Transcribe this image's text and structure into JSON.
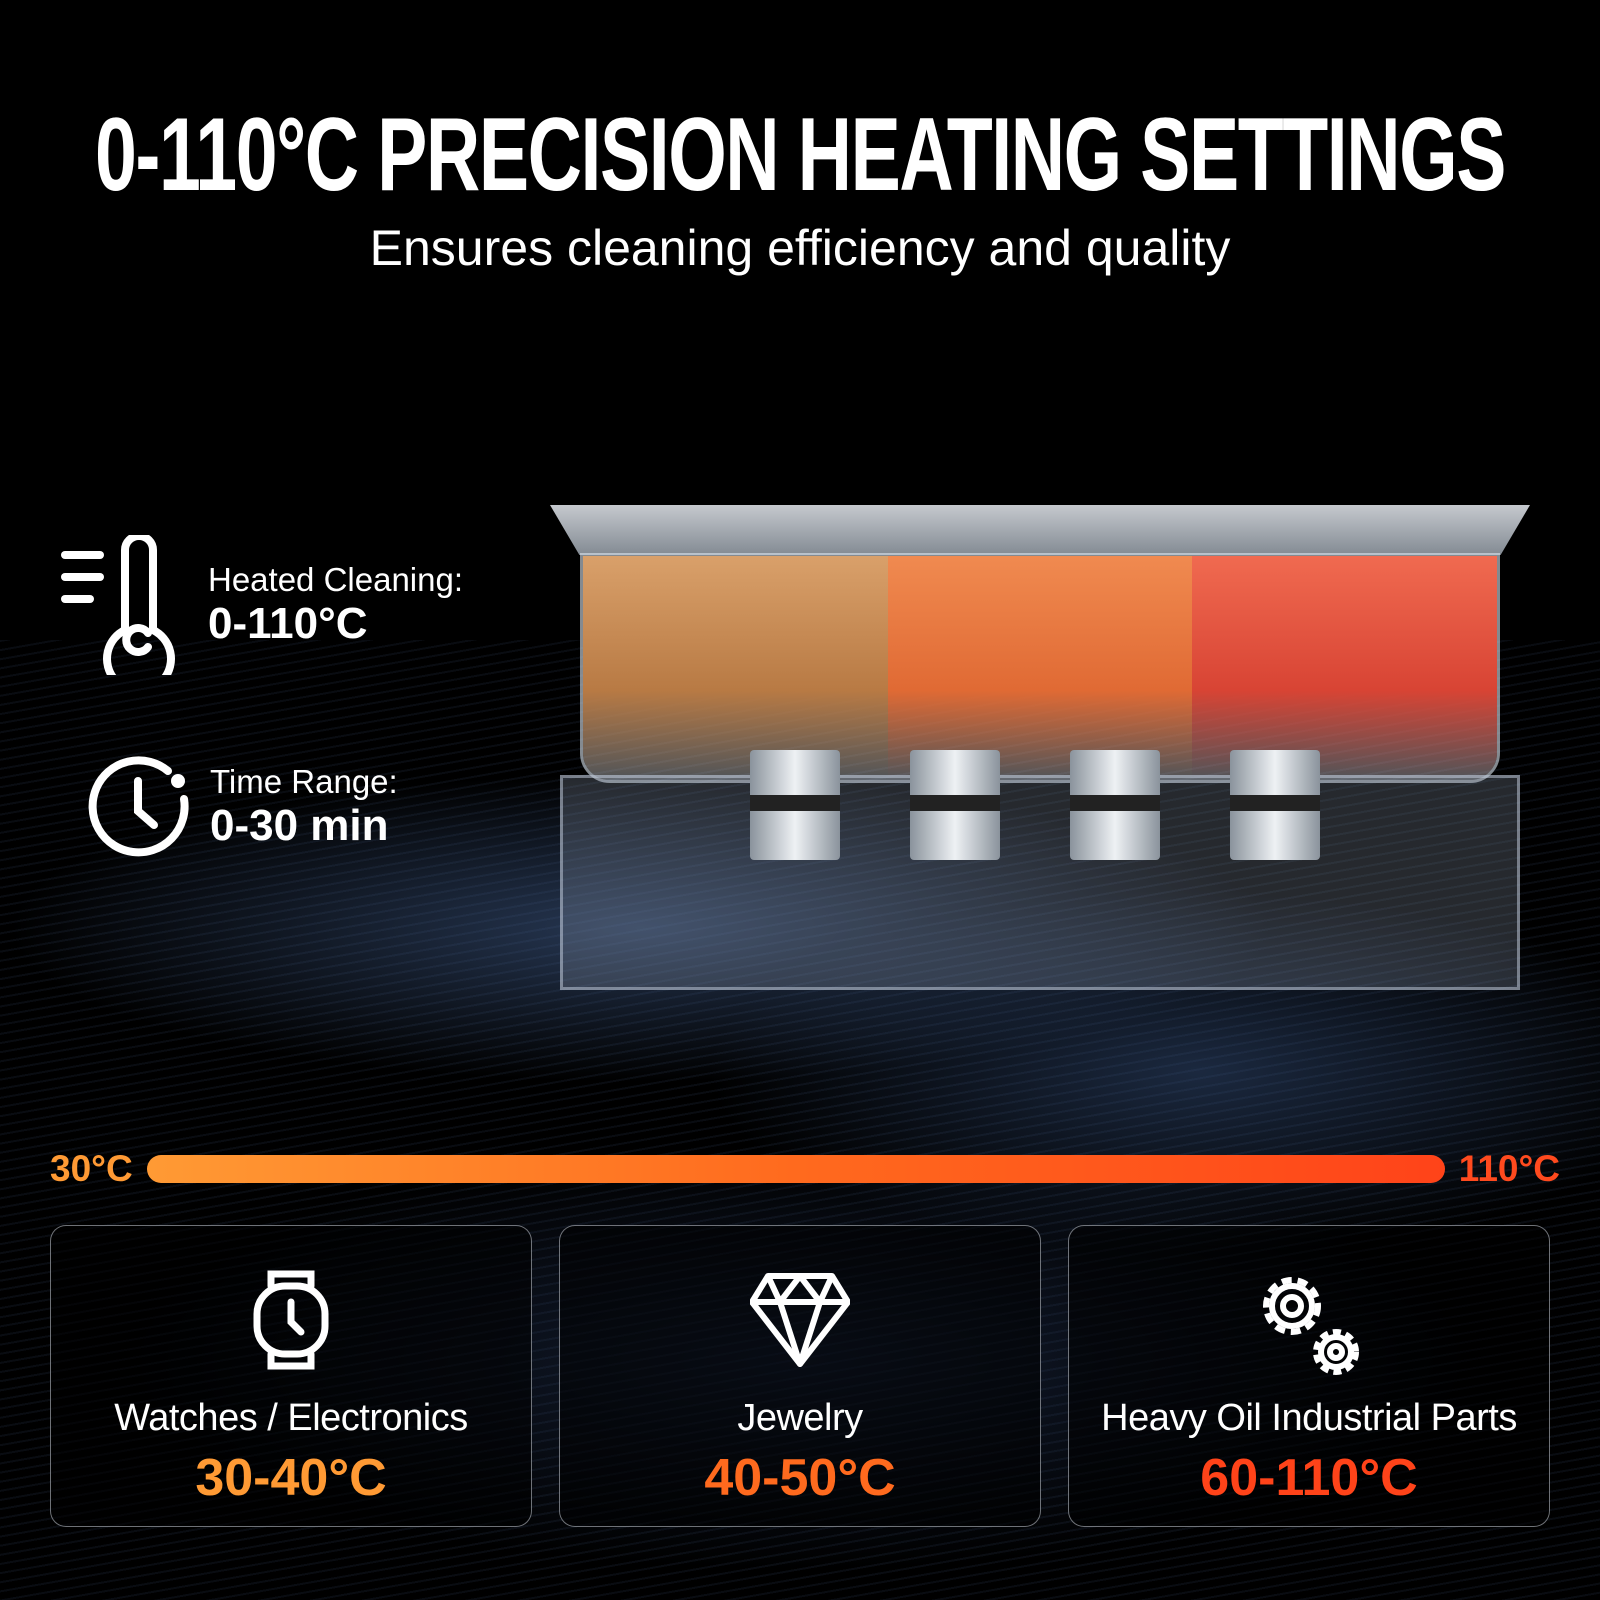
{
  "header": {
    "title": "0-110°C PRECISION HEATING SETTINGS",
    "subtitle": "Ensures cleaning efficiency and quality"
  },
  "specs": [
    {
      "icon": "thermometer-icon",
      "label": "Heated Cleaning:",
      "value": "0-110°C"
    },
    {
      "icon": "clock-icon",
      "label": "Time Range:",
      "value": "0-30 min"
    }
  ],
  "temperature_bar": {
    "min_label": "30°C",
    "max_label": "110°C",
    "colors": [
      "#ff9a34",
      "#ff6a1e",
      "#ff4319"
    ]
  },
  "cards": [
    {
      "icon": "watch-icon",
      "name": "Watches / Electronics",
      "range": "30-40°C",
      "color": "#ff9a34"
    },
    {
      "icon": "diamond-icon",
      "name": "Jewelry",
      "range": "40-50°C",
      "color": "#ff6a1e"
    },
    {
      "icon": "gears-icon",
      "name": "Heavy Oil Industrial Parts",
      "range": "60-110°C",
      "color": "#ff4319"
    }
  ]
}
